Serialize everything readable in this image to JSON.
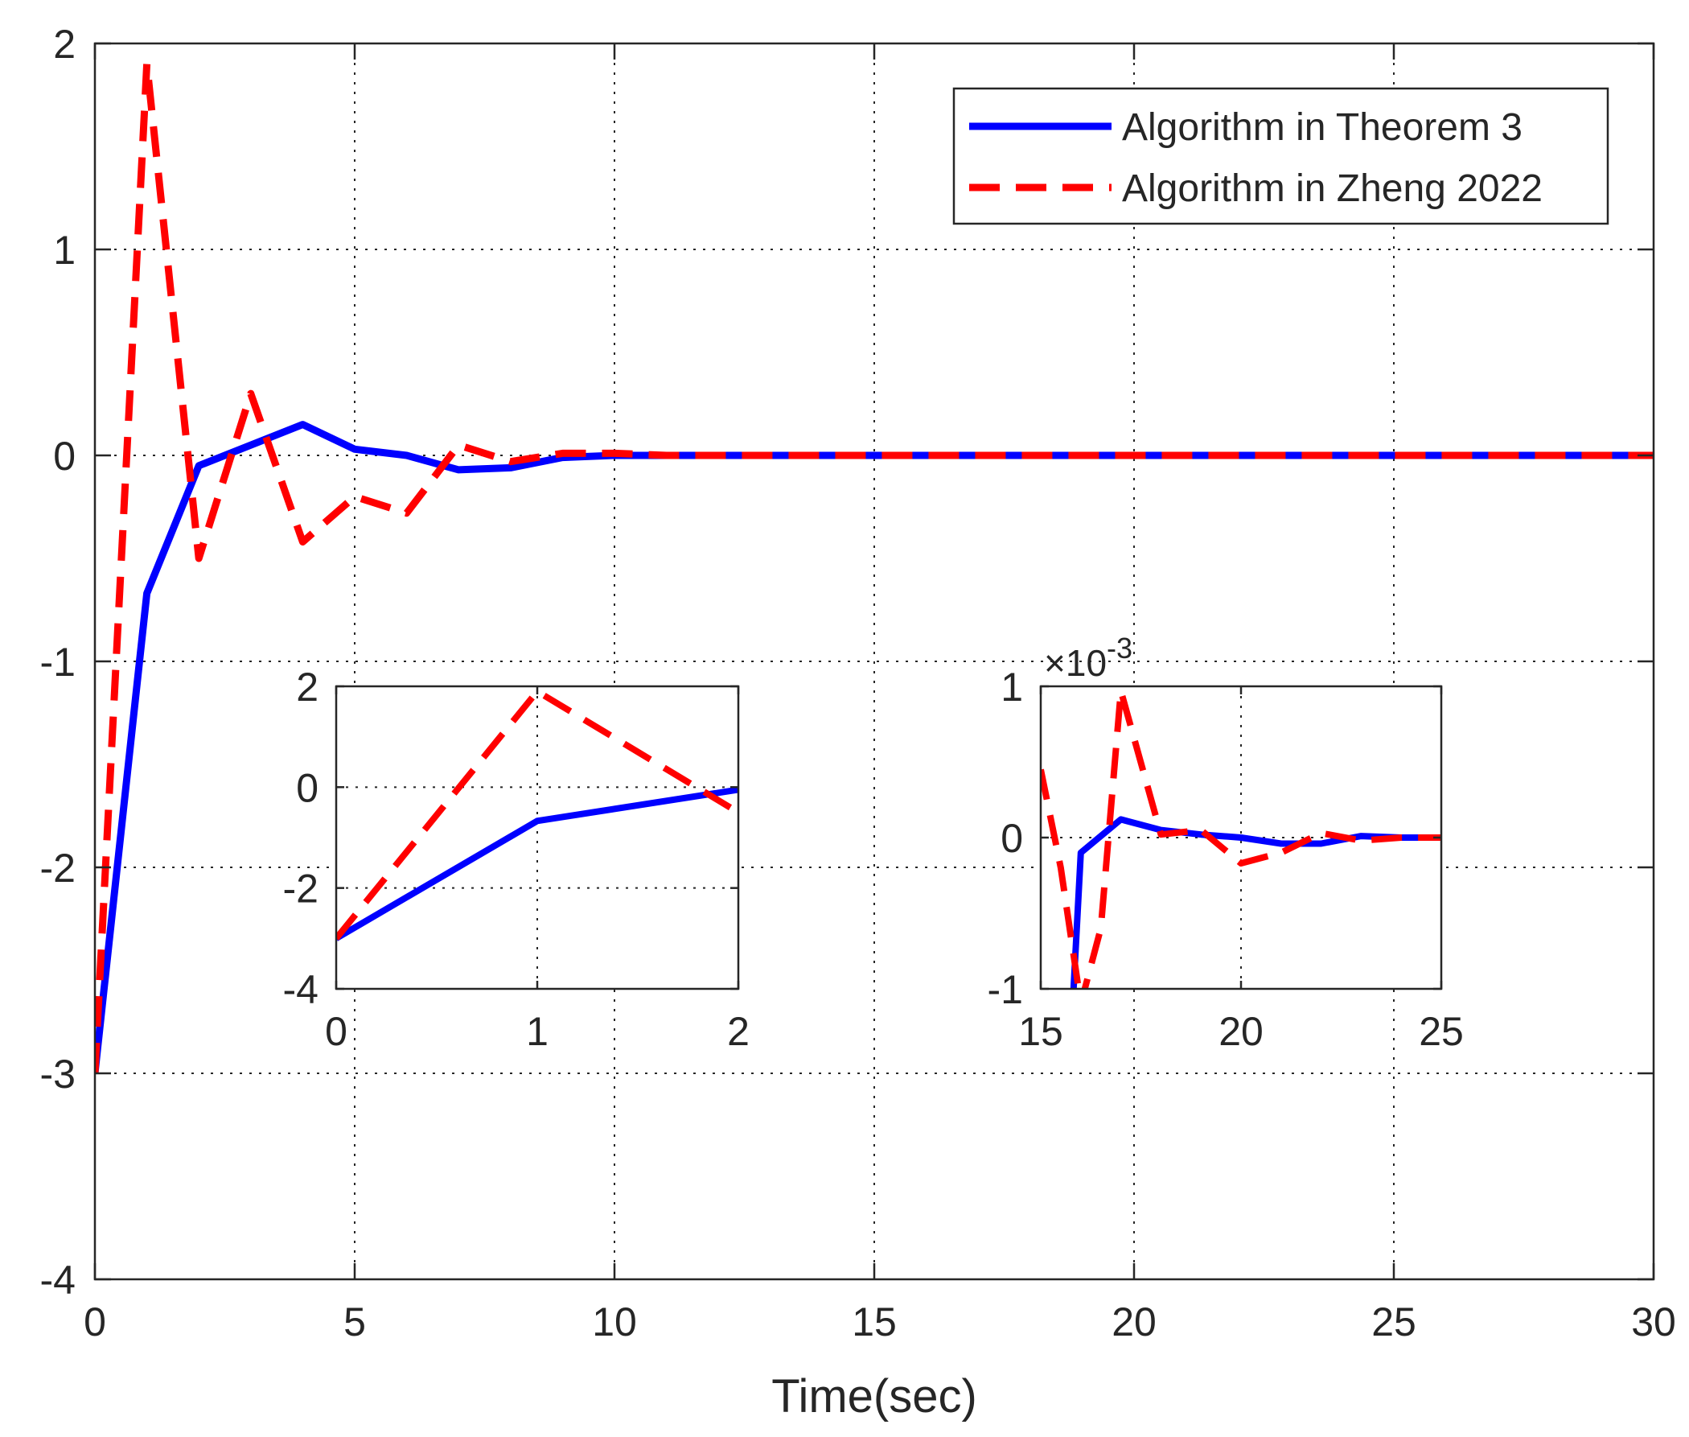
{
  "chart_data": [
    {
      "id": "main",
      "type": "line",
      "title": "",
      "xlabel": "Time(sec)",
      "ylabel": "",
      "xlim": [
        0,
        30
      ],
      "ylim": [
        -4,
        2
      ],
      "xticks": [
        0,
        5,
        10,
        15,
        20,
        25,
        30
      ],
      "yticks": [
        -4,
        -3,
        -2,
        -1,
        0,
        1,
        2
      ],
      "xtick_labels": [
        "0",
        "5",
        "10",
        "15",
        "20",
        "25",
        "30"
      ],
      "ytick_labels": [
        "-4",
        "-3",
        "-2",
        "-1",
        "0",
        "1",
        "2"
      ],
      "grid": true,
      "legend_position": "top-right",
      "series": [
        {
          "name": "Algorithm in Theorem 3",
          "color": "#0000ff",
          "dash": "solid",
          "x": [
            0,
            1,
            2,
            3,
            4,
            5,
            6,
            7,
            8,
            9,
            10,
            11,
            12,
            13,
            14,
            15,
            16,
            17,
            18,
            19,
            20,
            21,
            22,
            23,
            24,
            25,
            26,
            27,
            28,
            29,
            30
          ],
          "y": [
            -3.0,
            -0.67,
            -0.05,
            0.05,
            0.15,
            0.03,
            0.0,
            -0.07,
            -0.06,
            -0.01,
            0.0,
            0.0,
            0.0,
            0.0,
            0.0,
            0.0,
            0.0,
            0.0,
            0.0,
            0.0,
            0.0,
            0.0,
            0.0,
            0.0,
            0.0,
            0.0,
            0.0,
            0.0,
            0.0,
            0.0,
            0.0
          ]
        },
        {
          "name": "Algorithm in Zheng 2022",
          "color": "#ff0000",
          "dash": "dashed",
          "x": [
            0,
            1,
            2,
            3,
            4,
            5,
            6,
            7,
            8,
            9,
            10,
            11,
            12,
            13,
            14,
            15,
            16,
            17,
            18,
            19,
            20,
            21,
            22,
            23,
            24,
            25,
            26,
            27,
            28,
            29,
            30
          ],
          "y": [
            -3.0,
            1.9,
            -0.5,
            0.3,
            -0.42,
            -0.2,
            -0.28,
            0.05,
            -0.03,
            0.01,
            0.01,
            0.0,
            0.0,
            0.0,
            0.0,
            0.0,
            0.0,
            0.0,
            0.0,
            0.0,
            0.0,
            0.0,
            0.0,
            0.0,
            0.0,
            0.0,
            0.0,
            0.0,
            0.0,
            0.0,
            0.0
          ]
        }
      ]
    },
    {
      "id": "inset-left",
      "type": "line",
      "xlim": [
        0,
        2
      ],
      "ylim": [
        -4,
        2
      ],
      "xticks": [
        0,
        1,
        2
      ],
      "yticks": [
        -4,
        -2,
        0,
        2
      ],
      "xtick_labels": [
        "0",
        "1",
        "2"
      ],
      "ytick_labels": [
        "-4",
        "-2",
        "0",
        "2"
      ],
      "grid": true,
      "series": [
        {
          "name": "Algorithm in Theorem 3",
          "color": "#0000ff",
          "dash": "solid",
          "x": [
            0,
            1,
            2
          ],
          "y": [
            -3.0,
            -0.67,
            -0.05
          ]
        },
        {
          "name": "Algorithm in Zheng 2022",
          "color": "#ff0000",
          "dash": "dashed",
          "x": [
            0,
            1,
            2
          ],
          "y": [
            -3.0,
            1.9,
            -0.5
          ]
        }
      ]
    },
    {
      "id": "inset-right",
      "type": "line",
      "xlim": [
        15,
        25
      ],
      "ylim": [
        -1,
        1
      ],
      "xticks": [
        15,
        20,
        25
      ],
      "yticks": [
        -1,
        0,
        1
      ],
      "xtick_labels": [
        "15",
        "20",
        "25"
      ],
      "ytick_labels": [
        "-1",
        "0",
        "1"
      ],
      "y_exponent_label": "×10",
      "y_exponent_power": "-3",
      "grid": true,
      "series": [
        {
          "name": "Algorithm in Theorem 3",
          "color": "#0000ff",
          "dash": "solid",
          "x": [
            15.8,
            16,
            17,
            18,
            19,
            20,
            21,
            22,
            23,
            24,
            25
          ],
          "y": [
            -1.1,
            -0.1,
            0.12,
            0.05,
            0.02,
            0.0,
            -0.04,
            -0.04,
            0.01,
            0.0,
            0.0
          ]
        },
        {
          "name": "Algorithm in Zheng 2022",
          "color": "#ff0000",
          "dash": "dashed",
          "x": [
            15,
            15.5,
            16,
            16.5,
            17,
            18,
            19,
            20,
            21,
            22,
            23,
            24,
            25
          ],
          "y": [
            0.45,
            -0.2,
            -1.1,
            -0.6,
            0.97,
            0.02,
            0.05,
            -0.17,
            -0.1,
            0.03,
            -0.02,
            0.0,
            0.0
          ]
        }
      ]
    }
  ]
}
